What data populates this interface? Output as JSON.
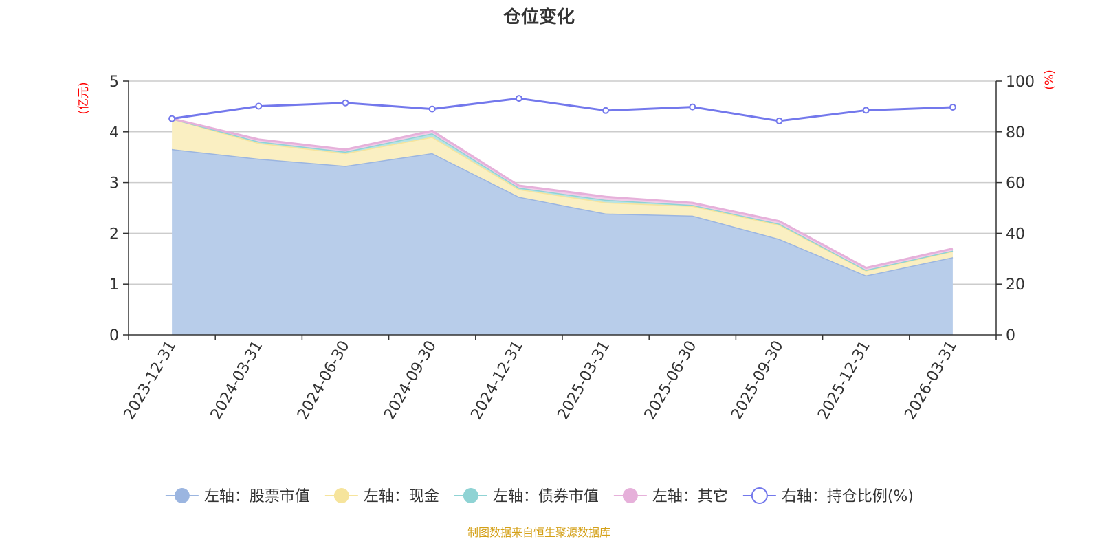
{
  "chart_data": {
    "type": "area",
    "title": "仓位变化",
    "left_axis_unit": "(亿元)",
    "right_axis_unit": "(%)",
    "categories": [
      "2023-12-31",
      "2024-03-31",
      "2024-06-30",
      "2024-09-30",
      "2024-12-31",
      "2025-03-31",
      "2025-06-30",
      "2025-09-30",
      "2025-12-31",
      "2026-03-31"
    ],
    "ylim_left": [
      0,
      5
    ],
    "yticks_left": [
      0,
      1,
      2,
      3,
      4,
      5
    ],
    "ylim_right": [
      0,
      100
    ],
    "yticks_right": [
      0,
      20,
      40,
      60,
      80,
      100
    ],
    "stacked_series": [
      {
        "name": "左轴：股票市值",
        "color": "#9bb5e0",
        "fill": "#b8cdea",
        "values": [
          3.66,
          3.47,
          3.33,
          3.58,
          2.72,
          2.39,
          2.35,
          1.89,
          1.17,
          1.53
        ]
      },
      {
        "name": "左轴：现金",
        "color": "#f6e49c",
        "fill": "#faefc2",
        "values": [
          0.6,
          0.31,
          0.25,
          0.32,
          0.15,
          0.22,
          0.19,
          0.28,
          0.1,
          0.12
        ]
      },
      {
        "name": "左轴：债券市值",
        "color": "#8fd3d4",
        "fill": "#b7e4e4",
        "values": [
          0.0,
          0.03,
          0.03,
          0.07,
          0.03,
          0.05,
          0.02,
          0.02,
          0.01,
          0.01
        ]
      },
      {
        "name": "左轴：其它",
        "color": "#e6b0da",
        "fill": "#f0cde9",
        "values": [
          0.0,
          0.04,
          0.04,
          0.05,
          0.04,
          0.06,
          0.04,
          0.05,
          0.04,
          0.04
        ]
      }
    ],
    "line_series": {
      "name": "右轴：持仓比例(%)",
      "color": "#7378ec",
      "values": [
        85.2,
        90.1,
        91.4,
        89.0,
        93.2,
        88.4,
        89.8,
        84.3,
        88.5,
        89.7
      ]
    },
    "grid": true,
    "legend_position": "bottom-center"
  },
  "source_note": "制图数据来自恒生聚源数据库",
  "colors": {
    "title": "#333333",
    "axis_unit": "#ff0000",
    "source": "#d4a017",
    "axis": "#333333",
    "grid": "#cccccc"
  }
}
